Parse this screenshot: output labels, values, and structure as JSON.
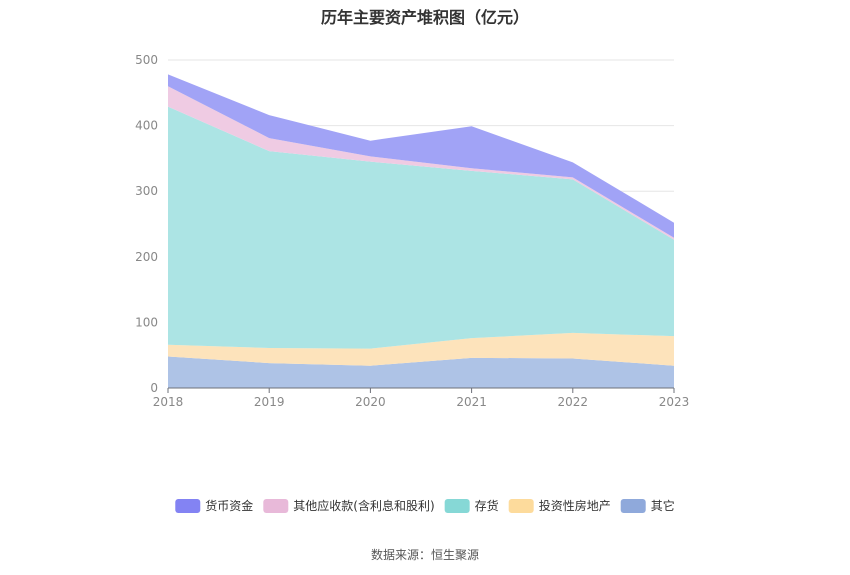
{
  "title": "历年主要资产堆积图（亿元）",
  "source": "数据来源：恒生聚源",
  "chart_data": {
    "type": "area",
    "stacked": true,
    "title": "历年主要资产堆积图（亿元）",
    "x": [
      "2018",
      "2019",
      "2020",
      "2021",
      "2022",
      "2023"
    ],
    "ylim": [
      0,
      500
    ],
    "yticks": [
      0,
      100,
      200,
      300,
      400,
      500
    ],
    "grid": true,
    "legend_position": "bottom",
    "series": [
      {
        "name": "其它",
        "color": "#aec3e6",
        "legend_color": "#8fa9db",
        "values": [
          48,
          38,
          34,
          46,
          45,
          34
        ]
      },
      {
        "name": "投资性房地产",
        "color": "#fde3bb",
        "legend_color": "#fddb9c",
        "values": [
          18,
          23,
          26,
          30,
          39,
          45
        ]
      },
      {
        "name": "存货",
        "color": "#ace4e4",
        "legend_color": "#86d8d6",
        "values": [
          363,
          300,
          285,
          255,
          234,
          147
        ]
      },
      {
        "name": "其他应收款(含利息和股利)",
        "color": "#efcbe3",
        "legend_color": "#e8b9d9",
        "values": [
          31,
          20,
          8,
          4,
          3,
          3
        ]
      },
      {
        "name": "货币资金",
        "color": "#a1a3f6",
        "legend_color": "#8383f3",
        "values": [
          18,
          35,
          24,
          64,
          23,
          23
        ]
      }
    ],
    "legend_order": [
      "货币资金",
      "其他应收款(含利息和股利)",
      "存货",
      "投资性房地产",
      "其它"
    ]
  }
}
